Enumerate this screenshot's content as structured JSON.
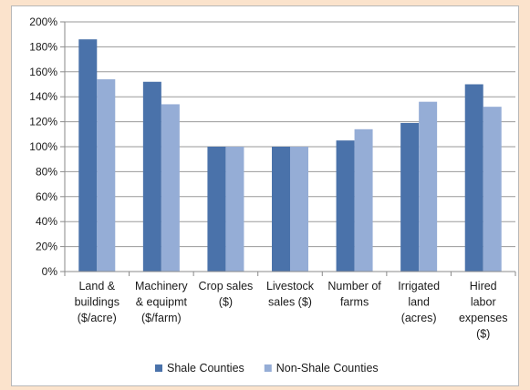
{
  "chart_data": {
    "type": "bar",
    "title": "",
    "xlabel": "",
    "ylabel": "",
    "categories": [
      [
        "Land &",
        "buildings",
        "($/acre)"
      ],
      [
        "Machinery",
        "& equipmt",
        "($/farm)"
      ],
      [
        "Crop sales",
        "($)"
      ],
      [
        "Livestock",
        "sales ($)"
      ],
      [
        "Number of",
        "farms"
      ],
      [
        "Irrigated",
        "land",
        "(acres)"
      ],
      [
        "Hired",
        "labor",
        "expenses",
        "($)"
      ]
    ],
    "series": [
      {
        "name": "Shale Counties",
        "color": "#4a72aa",
        "values": [
          186,
          152,
          100,
          100,
          105,
          119,
          150
        ]
      },
      {
        "name": "Non-Shale Counties",
        "color": "#95add6",
        "values": [
          154,
          134,
          100,
          100,
          114,
          136,
          132
        ]
      }
    ],
    "ylim": [
      0,
      200
    ],
    "yticks": [
      "0%",
      "20%",
      "40%",
      "60%",
      "80%",
      "100%",
      "120%",
      "140%",
      "160%",
      "180%",
      "200%"
    ],
    "grid": true,
    "legend": "bottom"
  }
}
